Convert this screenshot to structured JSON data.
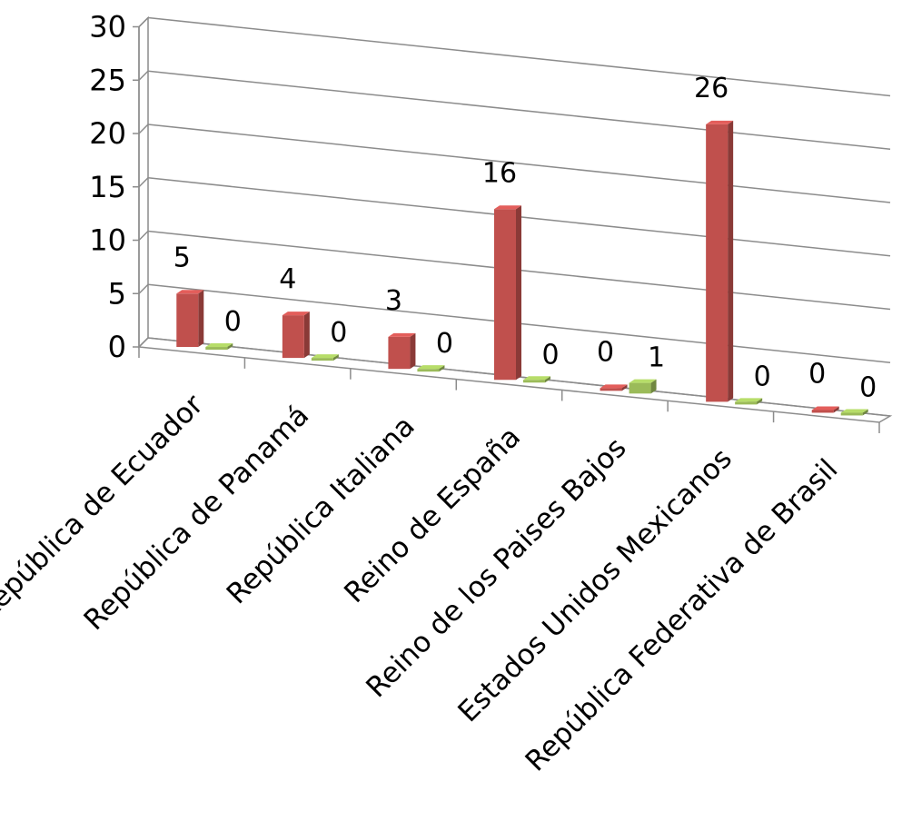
{
  "chart_data": {
    "type": "bar",
    "title": "",
    "xlabel": "",
    "ylabel": "",
    "ylim": [
      0,
      30
    ],
    "yticks": [
      "0",
      "5",
      "10",
      "15",
      "20",
      "25",
      "30"
    ],
    "grid": true,
    "legend": "none",
    "categories": [
      "República de Ecuador",
      "República de Panamá",
      "República  Italiana",
      "Reino de España",
      "Reino de los Paises Bajos",
      "Estados Unidos Mexicanos",
      "República Federativa de Brasil"
    ],
    "series": [
      {
        "color": "#c0504d",
        "values": [
          5,
          4,
          3,
          16,
          0,
          26,
          0
        ]
      },
      {
        "color": "#9bbb59",
        "values": [
          0,
          0,
          0,
          0,
          1,
          0,
          0
        ]
      }
    ]
  }
}
